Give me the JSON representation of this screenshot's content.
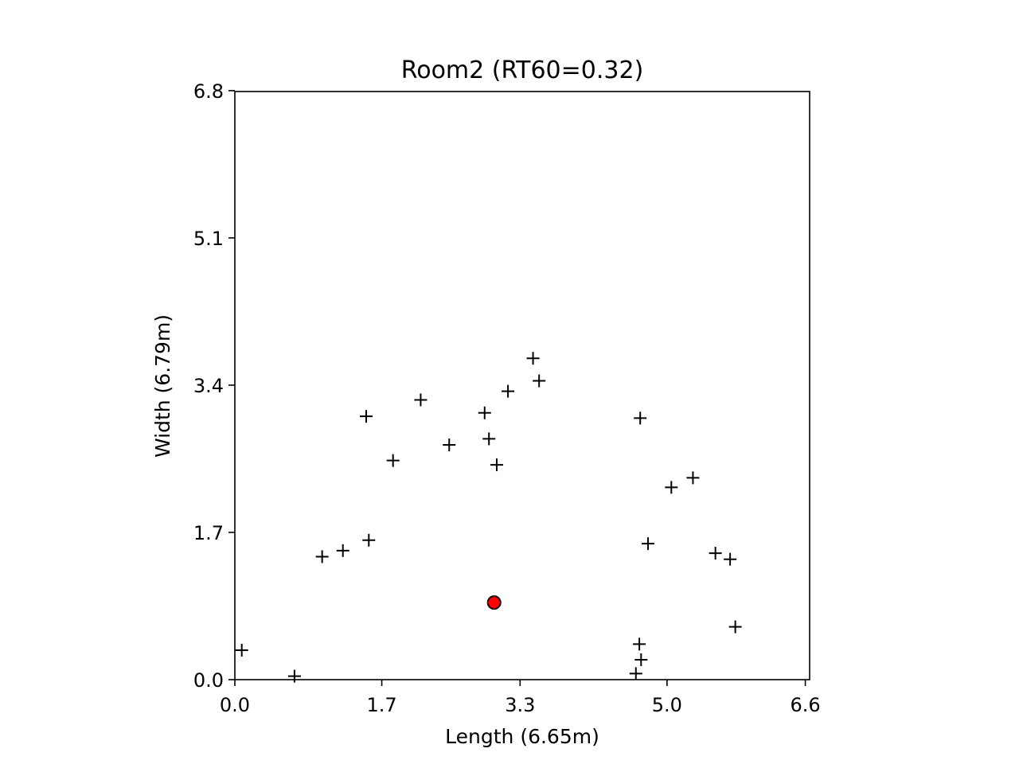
{
  "chart_data": {
    "type": "scatter",
    "title": "Room2 (RT60=0.32)",
    "xlabel": "Length (6.65m)",
    "ylabel": "Width (6.79m)",
    "xlim": [
      0,
      6.65
    ],
    "ylim": [
      0,
      6.79
    ],
    "xticks": [
      0.0,
      1.7,
      3.3,
      5.0,
      6.6
    ],
    "xtick_labels": [
      "0.0",
      "1.7",
      "3.3",
      "5.0",
      "6.6"
    ],
    "yticks": [
      0.0,
      1.7,
      3.4,
      5.1,
      6.8
    ],
    "ytick_labels": [
      "0.0",
      "1.7",
      "3.4",
      "5.1",
      "6.8"
    ],
    "grid": false,
    "series": [
      {
        "marker": "plus",
        "color": "#000000",
        "points": [
          [
            0.08,
            0.34
          ],
          [
            0.69,
            0.04
          ],
          [
            1.01,
            1.42
          ],
          [
            1.25,
            1.49
          ],
          [
            1.52,
            3.04
          ],
          [
            1.55,
            1.61
          ],
          [
            1.83,
            2.53
          ],
          [
            2.15,
            3.23
          ],
          [
            2.48,
            2.71
          ],
          [
            2.89,
            3.08
          ],
          [
            2.94,
            2.78
          ],
          [
            3.03,
            2.48
          ],
          [
            3.16,
            3.33
          ],
          [
            3.45,
            3.71
          ],
          [
            3.52,
            3.45
          ],
          [
            4.64,
            0.07
          ],
          [
            4.68,
            0.41
          ],
          [
            4.69,
            3.02
          ],
          [
            4.7,
            0.23
          ],
          [
            4.78,
            1.57
          ],
          [
            5.05,
            2.22
          ],
          [
            5.3,
            2.33
          ],
          [
            5.56,
            1.46
          ],
          [
            5.73,
            1.39
          ],
          [
            5.79,
            0.61
          ]
        ]
      },
      {
        "marker": "circle",
        "color": "#ff0000",
        "edge_color": "#000000",
        "points": [
          [
            3.0,
            0.89
          ]
        ]
      },
      {
        "marker": "plus",
        "color": "#ff0000",
        "points": [
          [
            3.0,
            0.89
          ]
        ]
      }
    ]
  }
}
